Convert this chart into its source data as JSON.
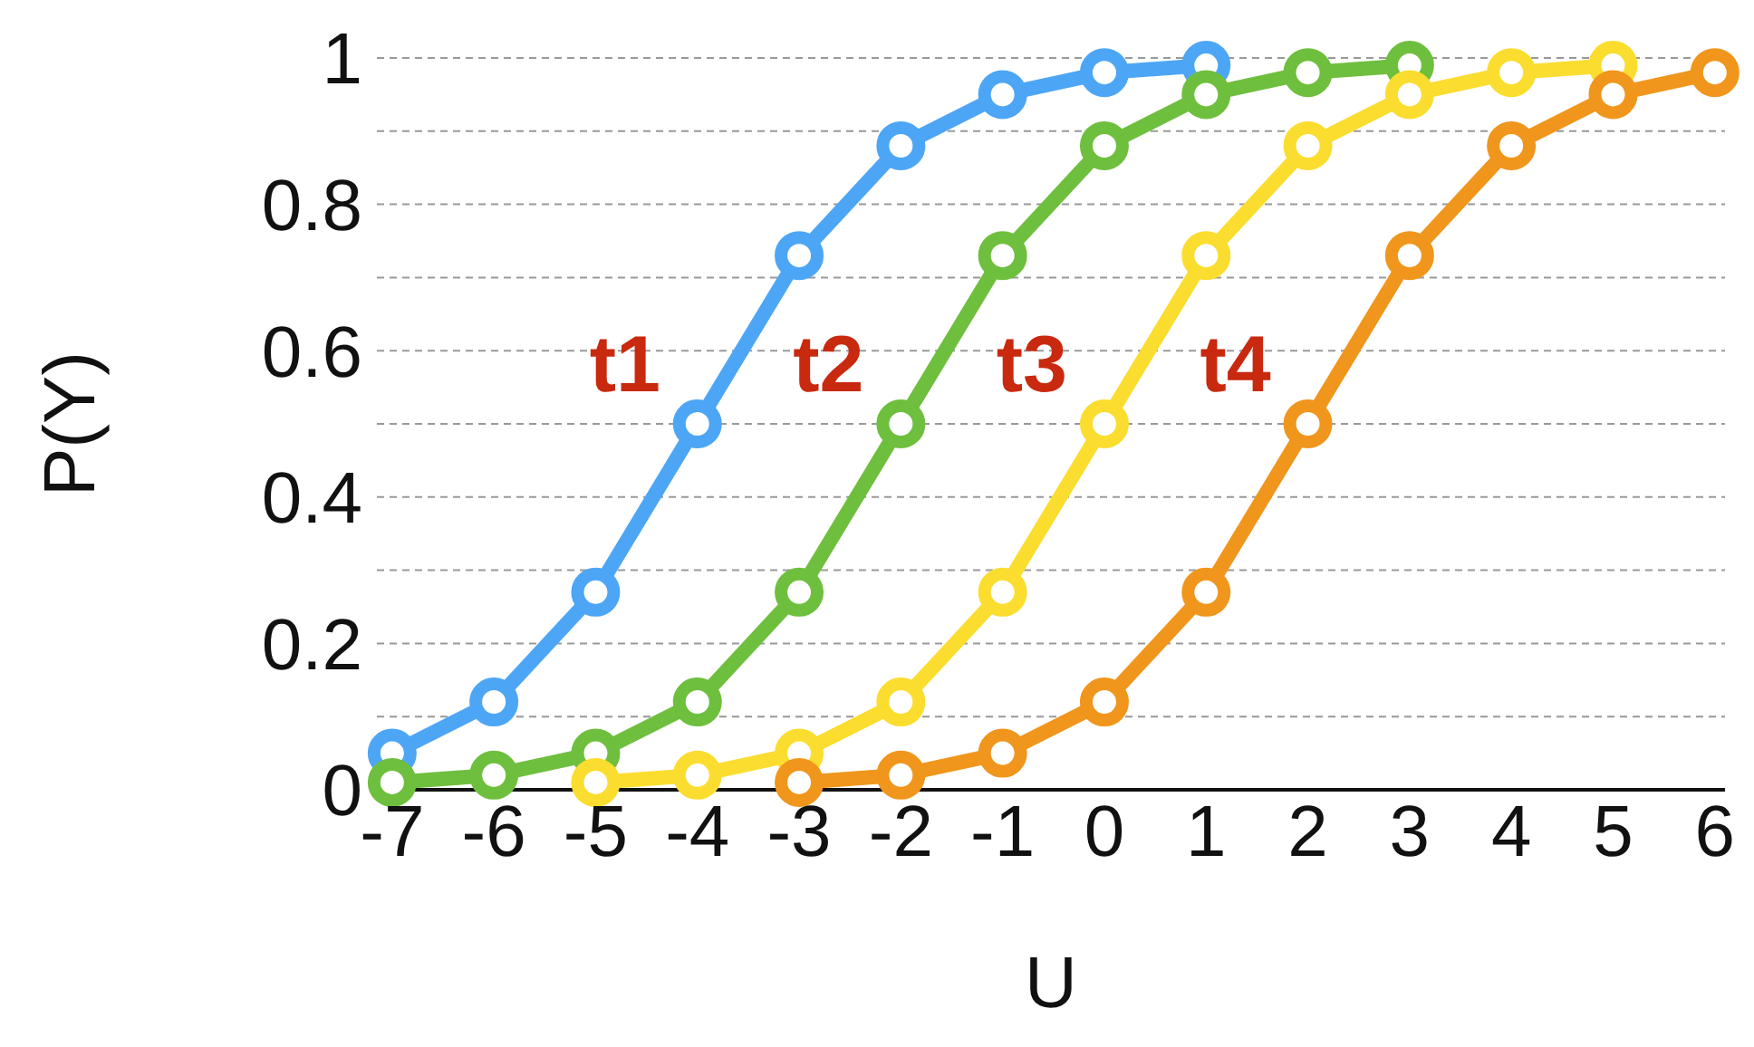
{
  "chart_data": {
    "type": "line",
    "xlabel": "U",
    "ylabel": "P(Y)",
    "xlim": [
      -7.15,
      6.1
    ],
    "xticks": [
      -7,
      -6,
      -5,
      -4,
      -3,
      -2,
      -1,
      0,
      1,
      2,
      3,
      4,
      5,
      6
    ],
    "ylim": [
      0,
      1
    ],
    "yticks": [
      0,
      {
        "value": 0.1,
        "label": null
      },
      0.2,
      {
        "value": 0.3,
        "label": null
      },
      0.4,
      {
        "value": 0.5,
        "label": null
      },
      0.6,
      {
        "value": 0.7,
        "label": null
      },
      0.8,
      {
        "value": 0.9,
        "label": null
      },
      1
    ],
    "grid": "y",
    "marker": "circle",
    "line_style": "solid",
    "legend": false,
    "series": [
      {
        "name": "t1",
        "color": "#4da6f5",
        "x": [
          -7,
          -6,
          -5,
          -4,
          -3,
          -2,
          -1,
          0,
          1
        ],
        "values": [
          0.05,
          0.12,
          0.27,
          0.5,
          0.73,
          0.88,
          0.95,
          0.98,
          0.99
        ]
      },
      {
        "name": "t2",
        "color": "#6fbf3e",
        "x": [
          -7,
          -6,
          -5,
          -4,
          -3,
          -2,
          -1,
          0,
          1,
          2,
          3
        ],
        "values": [
          0.01,
          0.02,
          0.05,
          0.12,
          0.27,
          0.5,
          0.73,
          0.88,
          0.95,
          0.98,
          0.99
        ]
      },
      {
        "name": "t3",
        "color": "#fbdd2f",
        "x": [
          -5,
          -4,
          -3,
          -2,
          -1,
          0,
          1,
          2,
          3,
          4,
          5
        ],
        "values": [
          0.01,
          0.02,
          0.05,
          0.12,
          0.27,
          0.5,
          0.73,
          0.88,
          0.95,
          0.98,
          0.99
        ]
      },
      {
        "name": "t4",
        "color": "#f0961c",
        "x": [
          -3,
          -2,
          -1,
          0,
          1,
          2,
          3,
          4,
          5,
          6
        ],
        "values": [
          0.01,
          0.02,
          0.05,
          0.12,
          0.27,
          0.5,
          0.73,
          0.88,
          0.95,
          0.98
        ]
      }
    ]
  }
}
